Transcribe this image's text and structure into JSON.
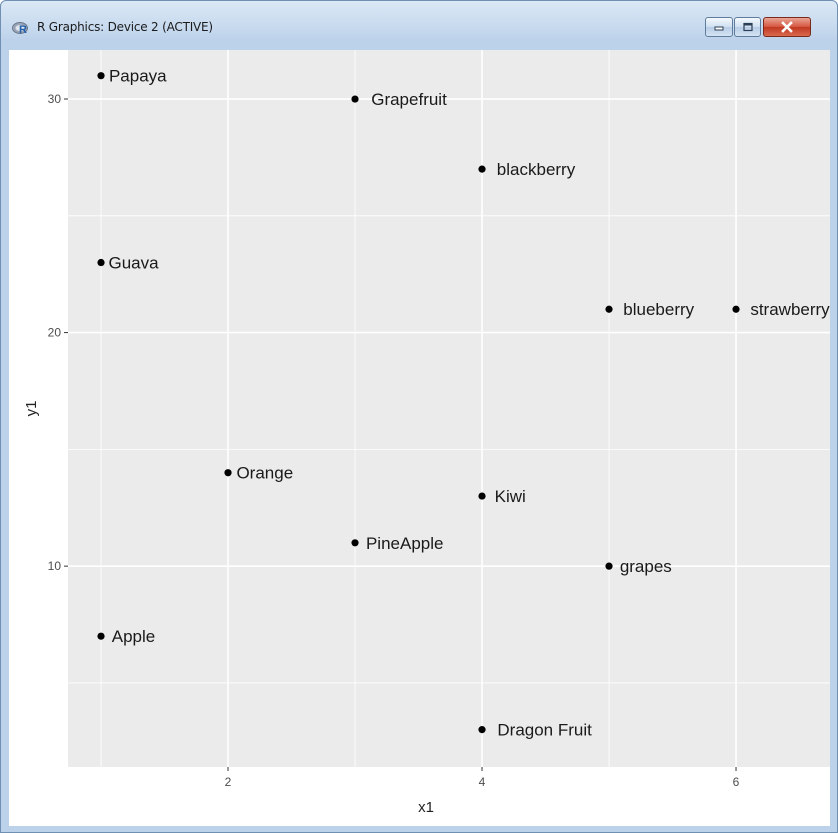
{
  "window": {
    "title": "R Graphics: Device 2 (ACTIVE)",
    "icon": "r-logo-icon",
    "controls": [
      "minimize-icon",
      "maximize-icon",
      "close-icon"
    ]
  },
  "chart_data": {
    "type": "scatter",
    "title": "",
    "xlabel": "x1",
    "ylabel": "y1",
    "xlim": [
      0.74,
      6.74
    ],
    "ylim": [
      1.4,
      32.1
    ],
    "x_ticks": [
      2,
      4,
      6
    ],
    "y_ticks": [
      10,
      20,
      30
    ],
    "grid": true,
    "legend": "none",
    "colors": {
      "panel": "#ebebeb",
      "grid": "#ffffff",
      "point": "#000000",
      "text": "#1a1a1a",
      "tick_text": "#4d4d4d"
    },
    "points": [
      {
        "x": 1,
        "y": 31,
        "label": "Papaya"
      },
      {
        "x": 3,
        "y": 30,
        "label": "Grapefruit"
      },
      {
        "x": 4,
        "y": 27,
        "label": "blackberry"
      },
      {
        "x": 1,
        "y": 23,
        "label": "Guava"
      },
      {
        "x": 5,
        "y": 21,
        "label": "blueberry"
      },
      {
        "x": 6,
        "y": 21,
        "label": "strawberry"
      },
      {
        "x": 2,
        "y": 14,
        "label": "Orange"
      },
      {
        "x": 4,
        "y": 13,
        "label": "Kiwi"
      },
      {
        "x": 3,
        "y": 11,
        "label": "PineApple"
      },
      {
        "x": 5,
        "y": 10,
        "label": "grapes"
      },
      {
        "x": 1,
        "y": 7,
        "label": "Apple"
      },
      {
        "x": 4,
        "y": 3,
        "label": "Dragon Fruit"
      }
    ]
  }
}
